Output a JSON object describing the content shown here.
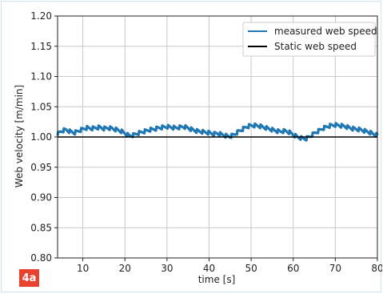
{
  "chart_data": {
    "type": "line",
    "xlabel": "time [s]",
    "ylabel": "Web velocity [m/min]",
    "xlim": [
      4,
      80
    ],
    "ylim": [
      0.8,
      1.2
    ],
    "x_ticks": [
      10,
      20,
      30,
      40,
      50,
      60,
      70,
      80
    ],
    "x_tick_labels": [
      "10",
      "20",
      "30",
      "40",
      "50",
      "60",
      "70",
      "80"
    ],
    "y_ticks": [
      0.8,
      0.85,
      0.9,
      0.95,
      1.0,
      1.05,
      1.1,
      1.15,
      1.2
    ],
    "y_tick_labels": [
      "0.80",
      "0.85",
      "0.90",
      "0.95",
      "1.00",
      "1.05",
      "1.10",
      "1.15",
      "1.20"
    ],
    "grid": true,
    "legend_position": "top-right",
    "series": [
      {
        "name": "measured web speed",
        "color": "#1f77b4",
        "x": [
          4,
          5,
          6,
          7,
          8,
          9,
          10,
          11,
          12,
          13,
          14,
          15,
          16,
          17,
          18,
          19,
          20,
          21,
          22,
          23,
          24,
          25,
          26,
          27,
          28,
          29,
          30,
          31,
          32,
          33,
          34,
          35,
          36,
          37,
          38,
          39,
          40,
          41,
          42,
          43,
          44,
          45,
          46,
          47,
          48,
          49,
          50,
          51,
          52,
          53,
          54,
          55,
          56,
          57,
          58,
          59,
          60,
          61,
          62,
          63,
          64,
          65,
          66,
          67,
          68,
          69,
          70,
          71,
          72,
          73,
          74,
          75,
          76,
          77,
          78,
          79,
          80
        ],
        "y": [
          1.005,
          1.01,
          1.012,
          1.009,
          1.007,
          1.01,
          1.013,
          1.015,
          1.014,
          1.015,
          1.016,
          1.014,
          1.015,
          1.014,
          1.012,
          1.01,
          1.006,
          1.002,
          1.003,
          1.006,
          1.008,
          1.01,
          1.012,
          1.013,
          1.015,
          1.016,
          1.017,
          1.016,
          1.015,
          1.016,
          1.017,
          1.015,
          1.012,
          1.01,
          1.009,
          1.008,
          1.007,
          1.005,
          1.006,
          1.004,
          1.002,
          1.001,
          1.004,
          1.009,
          1.013,
          1.017,
          1.019,
          1.019,
          1.018,
          1.016,
          1.014,
          1.012,
          1.01,
          1.009,
          1.01,
          1.008,
          1.004,
          1.0,
          0.998,
          0.997,
          1.001,
          1.006,
          1.01,
          1.014,
          1.017,
          1.019,
          1.02,
          1.019,
          1.018,
          1.016,
          1.014,
          1.013,
          1.012,
          1.01,
          1.008,
          1.005,
          1.003
        ]
      },
      {
        "name": "Static web speed",
        "color": "#000000",
        "x": [
          4,
          80
        ],
        "y": [
          1.0,
          1.0
        ]
      }
    ]
  },
  "figure": {
    "panel_label": "4a",
    "badge_color": "#e8412f"
  }
}
